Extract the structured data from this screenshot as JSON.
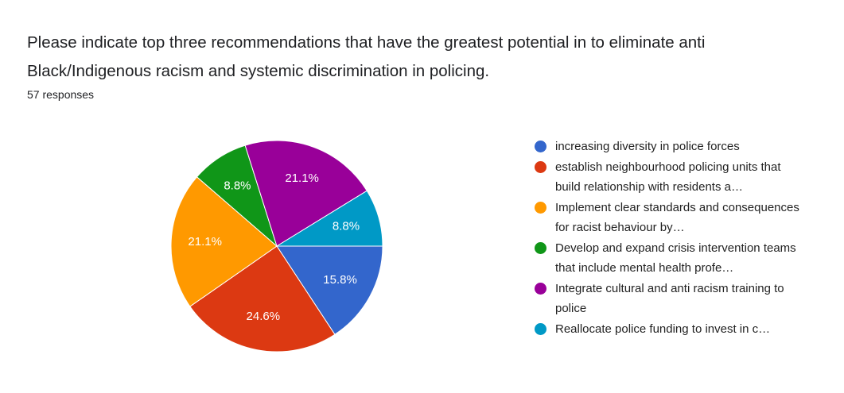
{
  "chart_data": {
    "type": "pie",
    "title": "Please indicate top three recommendations that have the greatest potential in to eliminate anti Black/Indigenous racism and systemic discrimination in policing.",
    "subtitle": "57 responses",
    "categories": [
      "increasing diversity in police forces",
      "establish neighbourhood policing units that build relationship with residents a…",
      "Implement clear standards and consequences for racist behaviour by…",
      "Develop and expand crisis intervention teams that include mental health profe…",
      "Integrate cultural and anti racism training to police",
      "Reallocate police funding to invest in c…"
    ],
    "values": [
      15.8,
      24.6,
      21.1,
      8.8,
      21.1,
      8.8
    ],
    "value_labels": [
      "15.8%",
      "24.6%",
      "21.1%",
      "8.8%",
      "21.1%",
      "8.8%"
    ],
    "colors": [
      "#3366cc",
      "#dc3912",
      "#ff9900",
      "#109618",
      "#990099",
      "#0099c6"
    ]
  }
}
